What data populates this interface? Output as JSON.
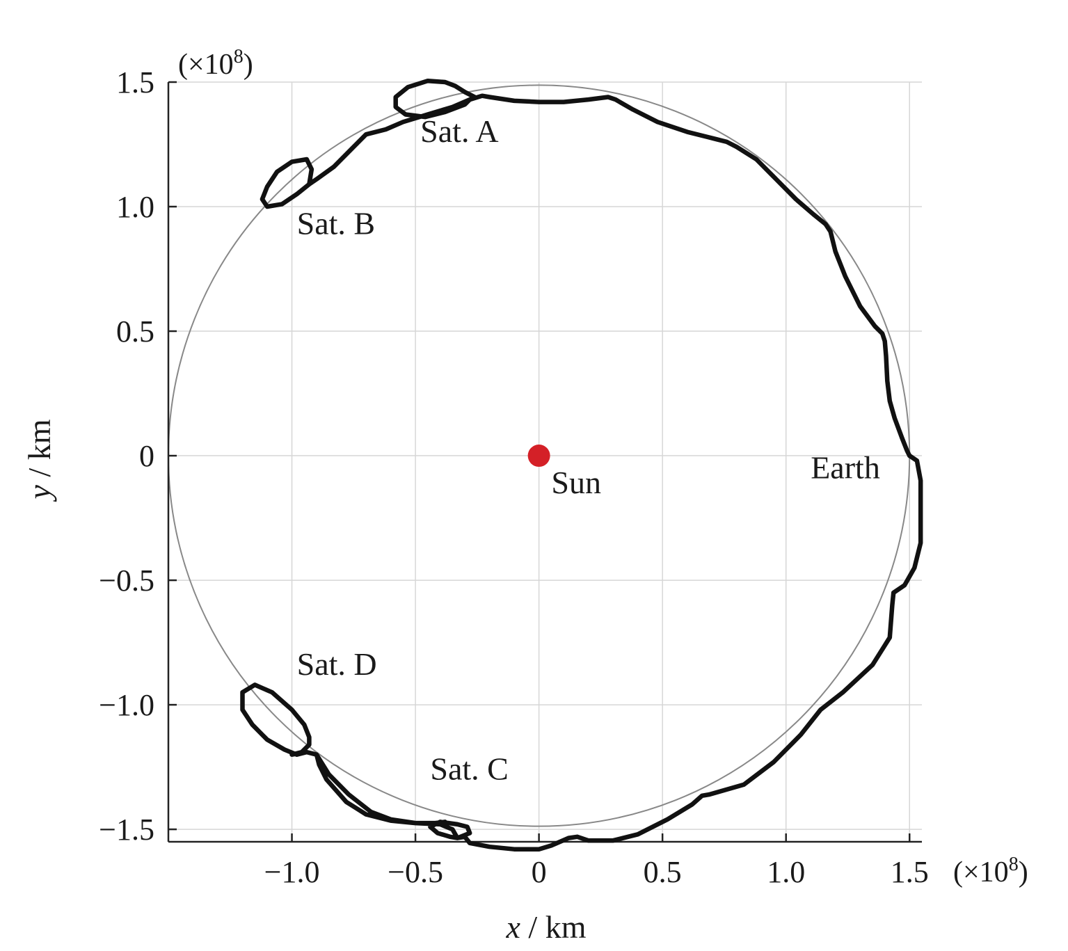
{
  "chart_data": {
    "type": "line",
    "xlabel_var": "x",
    "xlabel_unit": " / km",
    "ylabel_var": "y",
    "ylabel_unit": " / km",
    "x_scale_text": "(×10",
    "x_scale_exp": "8",
    "x_scale_close": ")",
    "y_scale_text": "(×10",
    "y_scale_exp": "8",
    "y_scale_close": ")",
    "xlim": [
      -1.5,
      1.55
    ],
    "ylim": [
      -1.55,
      1.5
    ],
    "x_ticks": [
      -1.0,
      -0.5,
      0,
      0.5,
      1.0,
      1.5
    ],
    "x_tick_labels": [
      "−1.0",
      "−0.5",
      "0",
      "0.5",
      "1.0",
      "1.5"
    ],
    "y_ticks": [
      -1.5,
      -1.0,
      -0.5,
      0,
      0.5,
      1.0,
      1.5
    ],
    "y_tick_labels": [
      "−1.5",
      "−1.0",
      "−0.5",
      "0",
      "0.5",
      "1.0",
      "1.5"
    ],
    "grid": true,
    "reference_circle_radius": 1.5,
    "sun": {
      "label": "Sun",
      "x": 0,
      "y": 0,
      "color": "#d42027"
    },
    "annotations": [
      {
        "text": "Sat. A",
        "x": -0.48,
        "y": 1.26
      },
      {
        "text": "Sat. B",
        "x": -0.98,
        "y": 0.89
      },
      {
        "text": "Earth",
        "x": 1.1,
        "y": -0.09
      },
      {
        "text": "Sat. D",
        "x": -0.98,
        "y": -0.88
      },
      {
        "text": "Sat. C",
        "x": -0.44,
        "y": -1.3
      }
    ],
    "trajectory": {
      "color": "#111111",
      "points": [
        [
          1.5,
          0.0
        ],
        [
          1.53,
          -0.02
        ],
        [
          1.545,
          -0.1
        ],
        [
          1.545,
          -0.25
        ],
        [
          1.545,
          -0.35
        ],
        [
          1.52,
          -0.45
        ],
        [
          1.48,
          -0.52
        ],
        [
          1.435,
          -0.55
        ],
        [
          1.43,
          -0.6
        ],
        [
          1.42,
          -0.73
        ],
        [
          1.35,
          -0.84
        ],
        [
          1.23,
          -0.95
        ],
        [
          1.14,
          -1.02
        ],
        [
          1.06,
          -1.12
        ],
        [
          0.95,
          -1.23
        ],
        [
          0.83,
          -1.32
        ],
        [
          0.69,
          -1.36
        ],
        [
          0.66,
          -1.365
        ],
        [
          0.62,
          -1.4
        ],
        [
          0.52,
          -1.46
        ],
        [
          0.4,
          -1.52
        ],
        [
          0.3,
          -1.545
        ],
        [
          0.2,
          -1.545
        ],
        [
          0.155,
          -1.53
        ],
        [
          0.12,
          -1.535
        ],
        [
          0.05,
          -1.565
        ],
        [
          0.0,
          -1.58
        ],
        [
          -0.1,
          -1.58
        ],
        [
          -0.2,
          -1.57
        ],
        [
          -0.28,
          -1.555
        ],
        [
          -0.3,
          -1.53
        ],
        [
          -0.33,
          -1.535
        ],
        [
          -0.28,
          -1.515
        ],
        [
          -0.29,
          -1.49
        ],
        [
          -0.33,
          -1.48
        ],
        [
          -0.4,
          -1.47
        ],
        [
          -0.44,
          -1.49
        ],
        [
          -0.41,
          -1.515
        ],
        [
          -0.36,
          -1.53
        ],
        [
          -0.33,
          -1.535
        ],
        [
          -0.35,
          -1.5
        ],
        [
          -0.4,
          -1.48
        ],
        [
          -0.5,
          -1.475
        ],
        [
          -0.6,
          -1.465
        ],
        [
          -0.7,
          -1.44
        ],
        [
          -0.78,
          -1.39
        ],
        [
          -0.86,
          -1.3
        ],
        [
          -0.89,
          -1.24
        ],
        [
          -0.9,
          -1.2
        ],
        [
          -0.94,
          -1.19
        ],
        [
          -0.98,
          -1.2
        ],
        [
          -1.03,
          -1.18
        ],
        [
          -1.1,
          -1.14
        ],
        [
          -1.16,
          -1.08
        ],
        [
          -1.2,
          -1.02
        ],
        [
          -1.2,
          -0.95
        ],
        [
          -1.15,
          -0.92
        ],
        [
          -1.08,
          -0.95
        ],
        [
          -1.0,
          -1.02
        ],
        [
          -0.95,
          -1.08
        ],
        [
          -0.93,
          -1.13
        ],
        [
          -0.93,
          -1.16
        ],
        [
          -0.96,
          -1.19
        ],
        [
          -1.0,
          -1.2
        ],
        [
          -0.94,
          -1.19
        ],
        [
          -0.9,
          -1.2
        ],
        [
          -0.85,
          -1.28
        ],
        [
          -0.77,
          -1.36
        ],
        [
          -0.68,
          -1.43
        ],
        [
          -0.6,
          -1.46
        ],
        [
          -0.5,
          -1.475
        ],
        [
          -0.42,
          -1.475
        ],
        [
          -0.38,
          -1.47
        ]
      ],
      "upper_points": [
        [
          1.5,
          0.0
        ],
        [
          1.49,
          0.02
        ],
        [
          1.47,
          0.07
        ],
        [
          1.44,
          0.15
        ],
        [
          1.42,
          0.22
        ],
        [
          1.41,
          0.3
        ],
        [
          1.405,
          0.4
        ],
        [
          1.4,
          0.46
        ],
        [
          1.39,
          0.49
        ],
        [
          1.36,
          0.52
        ],
        [
          1.3,
          0.6
        ],
        [
          1.24,
          0.72
        ],
        [
          1.2,
          0.82
        ],
        [
          1.18,
          0.9
        ],
        [
          1.16,
          0.93
        ],
        [
          1.11,
          0.97
        ],
        [
          1.04,
          1.03
        ],
        [
          0.96,
          1.11
        ],
        [
          0.88,
          1.19
        ],
        [
          0.8,
          1.24
        ],
        [
          0.76,
          1.26
        ],
        [
          0.72,
          1.27
        ],
        [
          0.6,
          1.3
        ],
        [
          0.48,
          1.34
        ],
        [
          0.38,
          1.39
        ],
        [
          0.31,
          1.43
        ],
        [
          0.28,
          1.44
        ],
        [
          0.2,
          1.43
        ],
        [
          0.1,
          1.42
        ],
        [
          0.0,
          1.42
        ],
        [
          -0.1,
          1.425
        ],
        [
          -0.2,
          1.44
        ],
        [
          -0.23,
          1.445
        ],
        [
          -0.28,
          1.43
        ],
        [
          -0.26,
          1.44
        ],
        [
          -0.3,
          1.46
        ],
        [
          -0.34,
          1.485
        ],
        [
          -0.38,
          1.5
        ],
        [
          -0.45,
          1.505
        ],
        [
          -0.53,
          1.48
        ],
        [
          -0.58,
          1.44
        ],
        [
          -0.58,
          1.4
        ],
        [
          -0.54,
          1.37
        ],
        [
          -0.46,
          1.36
        ],
        [
          -0.38,
          1.38
        ],
        [
          -0.3,
          1.41
        ],
        [
          -0.28,
          1.43
        ],
        [
          -0.35,
          1.4
        ],
        [
          -0.45,
          1.37
        ],
        [
          -0.55,
          1.34
        ],
        [
          -0.62,
          1.31
        ],
        [
          -0.7,
          1.29
        ],
        [
          -0.75,
          1.24
        ],
        [
          -0.83,
          1.16
        ],
        [
          -0.9,
          1.11
        ],
        [
          -0.93,
          1.09
        ],
        [
          -0.92,
          1.15
        ],
        [
          -0.94,
          1.19
        ],
        [
          -1.0,
          1.18
        ],
        [
          -1.06,
          1.14
        ],
        [
          -1.1,
          1.08
        ],
        [
          -1.12,
          1.03
        ],
        [
          -1.1,
          1.0
        ],
        [
          -1.04,
          1.01
        ],
        [
          -0.98,
          1.05
        ],
        [
          -0.93,
          1.09
        ]
      ]
    }
  }
}
